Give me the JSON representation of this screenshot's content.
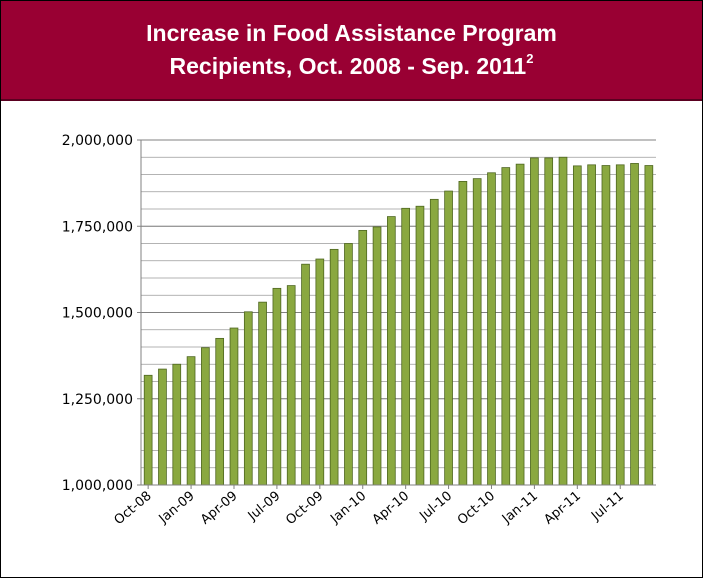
{
  "header": {
    "line1": "Increase in Food Assistance Program",
    "line2": "Recipients, Oct. 2008 - Sep. 2011",
    "footnote_marker": "2"
  },
  "colors": {
    "header_bg": "#990033",
    "bar_fill": "#8aa840",
    "bar_edge": "#4e6620",
    "grid": "#9a9a9a"
  },
  "chart_data": {
    "type": "bar",
    "title": "Increase in Food Assistance Program Recipients, Oct. 2008 - Sep. 2011",
    "xlabel": "",
    "ylabel": "",
    "ylim": [
      1000000,
      2000000
    ],
    "y_ticks": [
      1000000,
      1250000,
      1500000,
      1750000,
      2000000
    ],
    "y_tick_labels": [
      "1,000,000",
      "1,250,000",
      "1,500,000",
      "1,750,000",
      "2,000,000"
    ],
    "grid": true,
    "categories": [
      "Oct-08",
      "Nov-08",
      "Dec-08",
      "Jan-09",
      "Feb-09",
      "Mar-09",
      "Apr-09",
      "May-09",
      "Jun-09",
      "Jul-09",
      "Aug-09",
      "Sep-09",
      "Oct-09",
      "Nov-09",
      "Dec-09",
      "Jan-10",
      "Feb-10",
      "Mar-10",
      "Apr-10",
      "May-10",
      "Jun-10",
      "Jul-10",
      "Aug-10",
      "Sep-10",
      "Oct-10",
      "Nov-10",
      "Dec-10",
      "Jan-11",
      "Feb-11",
      "Mar-11",
      "Apr-11",
      "May-11",
      "Jun-11",
      "Jul-11",
      "Aug-11",
      "Sep-11"
    ],
    "x_tick_labels": [
      "Oct-08",
      "Jan-09",
      "Apr-09",
      "Jul-09",
      "Oct-09",
      "Jan-10",
      "Apr-10",
      "Jul-10",
      "Oct-10",
      "Jan-11",
      "Apr-11",
      "Jul-11"
    ],
    "values": [
      1318000,
      1336000,
      1350000,
      1372000,
      1398000,
      1425000,
      1455000,
      1502000,
      1530000,
      1570000,
      1578000,
      1640000,
      1655000,
      1683000,
      1700000,
      1738000,
      1748000,
      1778000,
      1802000,
      1808000,
      1828000,
      1852000,
      1880000,
      1888000,
      1905000,
      1920000,
      1930000,
      1948000,
      1948000,
      1950000,
      1925000,
      1928000,
      1926000,
      1928000,
      1932000,
      1926000
    ]
  }
}
